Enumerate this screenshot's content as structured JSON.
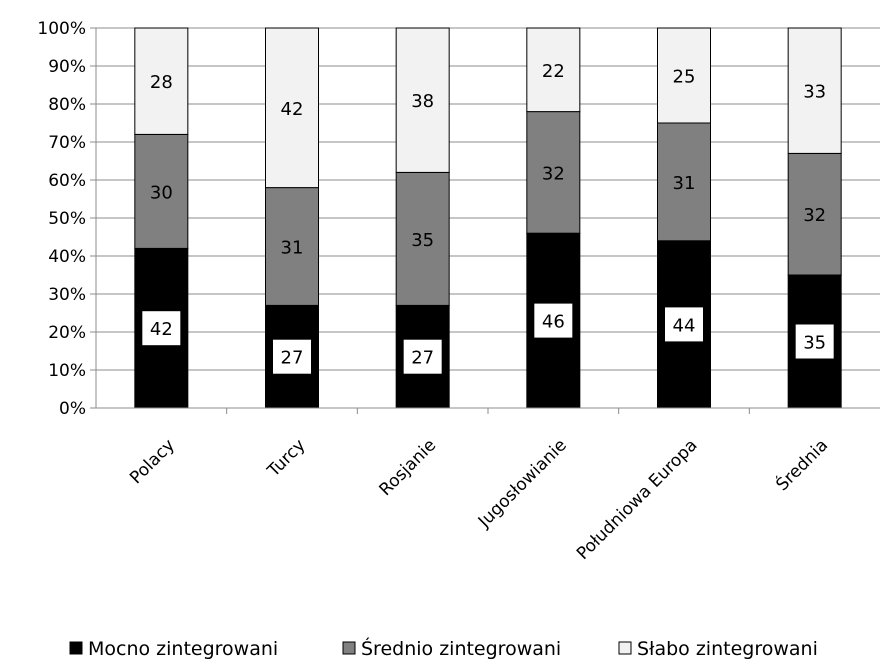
{
  "chart_data": {
    "type": "bar",
    "stacked": true,
    "percent_stacked": true,
    "categories": [
      "Polacy",
      "Turcy",
      "Rosjanie",
      "Jugosłowianie",
      "Południowa Europa",
      "Średnia"
    ],
    "series": [
      {
        "name": "Mocno zintegrowani",
        "values": [
          42,
          27,
          27,
          46,
          44,
          35
        ],
        "color": "#000000"
      },
      {
        "name": "Średnio zintegrowani",
        "values": [
          30,
          31,
          35,
          32,
          31,
          32
        ],
        "color": "#808080"
      },
      {
        "name": "Słabo zintegrowani",
        "values": [
          28,
          42,
          38,
          22,
          25,
          33
        ],
        "color": "#f2f2f2"
      }
    ],
    "yticks": [
      "0%",
      "10%",
      "20%",
      "30%",
      "40%",
      "50%",
      "60%",
      "70%",
      "80%",
      "90%",
      "100%"
    ],
    "ylim": [
      0,
      100
    ],
    "grid": true,
    "legend_position": "bottom"
  }
}
